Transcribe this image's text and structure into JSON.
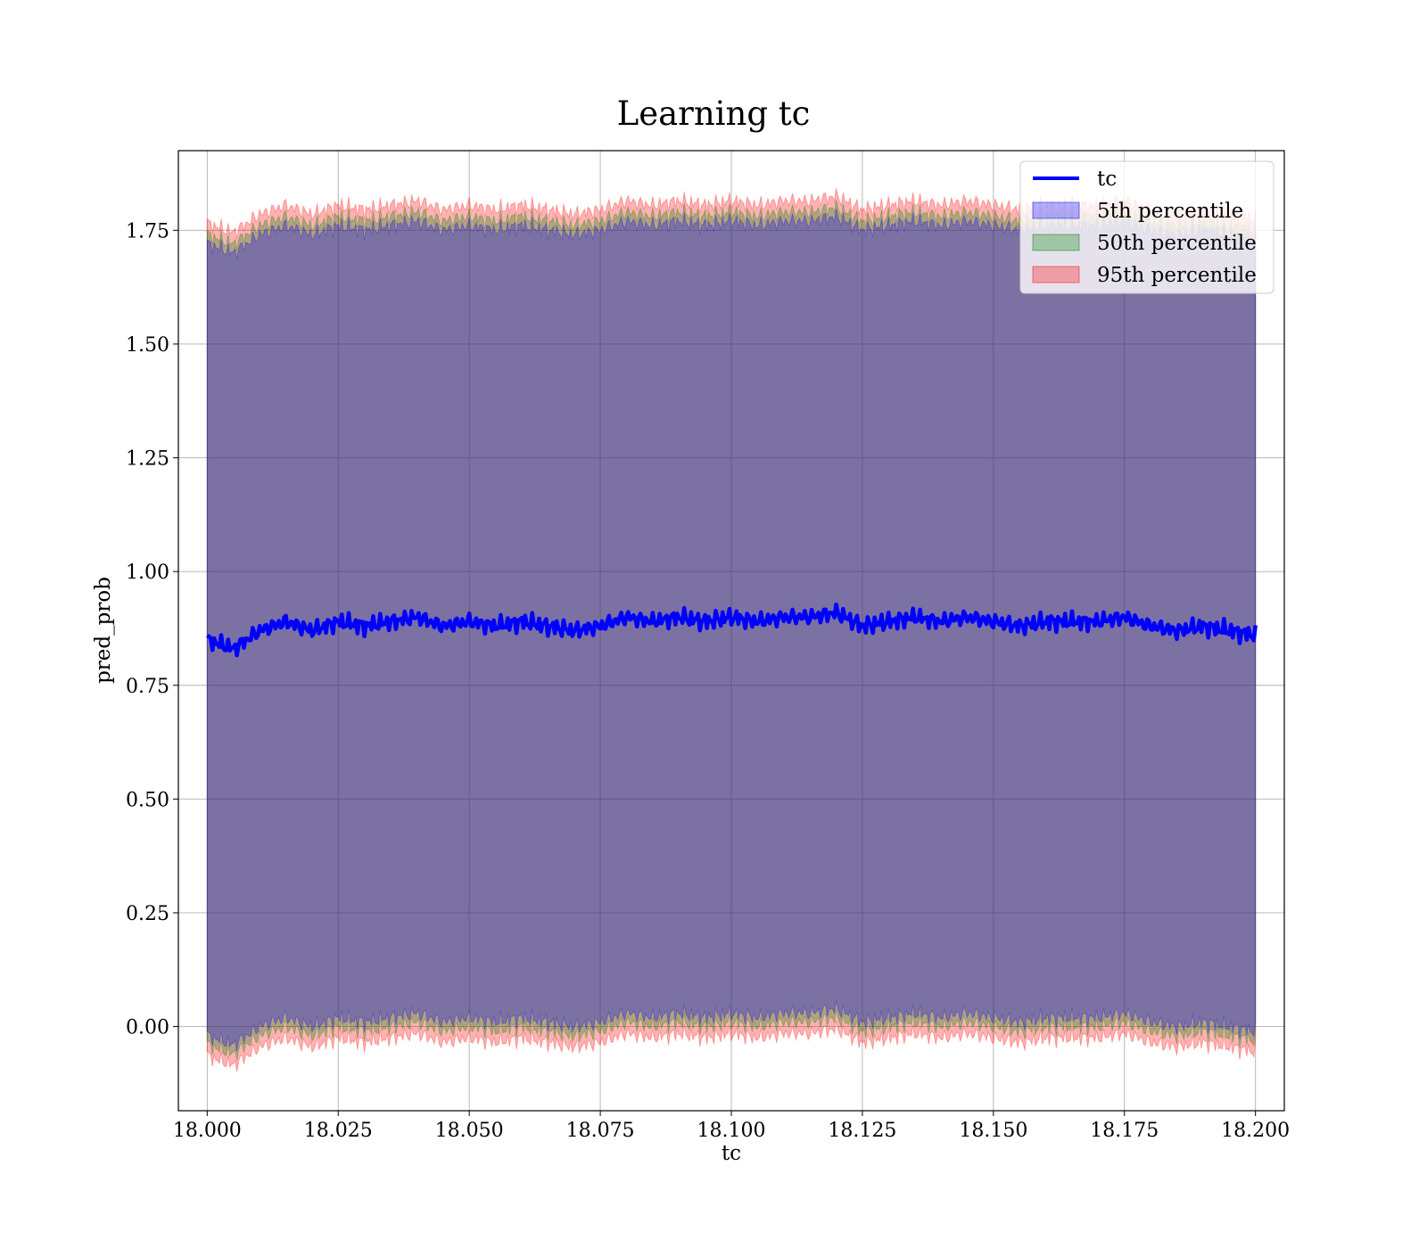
{
  "chart_data": {
    "type": "line",
    "title": "Learning tc",
    "xlabel": "tc",
    "ylabel": "pred_prob",
    "xlim": [
      17.9945,
      18.2055
    ],
    "ylim": [
      -0.185,
      1.925
    ],
    "x_ticks": [
      18.0,
      18.025,
      18.05,
      18.075,
      18.1,
      18.125,
      18.15,
      18.175,
      18.2
    ],
    "x_tick_labels": [
      "18.000",
      "18.025",
      "18.050",
      "18.075",
      "18.100",
      "18.125",
      "18.150",
      "18.175",
      "18.200"
    ],
    "y_ticks": [
      0.0,
      0.25,
      0.5,
      0.75,
      1.0,
      1.25,
      1.5,
      1.75
    ],
    "y_tick_labels": [
      "0.00",
      "0.25",
      "0.50",
      "0.75",
      "1.00",
      "1.25",
      "1.50",
      "1.75"
    ],
    "grid": true,
    "legend_position": "top-right",
    "series": [
      {
        "name": "tc",
        "kind": "line",
        "color": "#0000ff",
        "x": [
          18.0,
          18.005,
          18.01,
          18.015,
          18.02,
          18.025,
          18.03,
          18.035,
          18.04,
          18.045,
          18.05,
          18.055,
          18.06,
          18.065,
          18.07,
          18.075,
          18.08,
          18.085,
          18.09,
          18.095,
          18.1,
          18.105,
          18.11,
          18.115,
          18.12,
          18.125,
          18.13,
          18.135,
          18.14,
          18.145,
          18.15,
          18.155,
          18.16,
          18.165,
          18.17,
          18.175,
          18.18,
          18.185,
          18.19,
          18.195,
          18.2
        ],
        "y": [
          0.85,
          0.83,
          0.87,
          0.89,
          0.87,
          0.89,
          0.88,
          0.89,
          0.9,
          0.88,
          0.89,
          0.88,
          0.89,
          0.88,
          0.87,
          0.88,
          0.9,
          0.89,
          0.9,
          0.89,
          0.9,
          0.89,
          0.9,
          0.9,
          0.91,
          0.88,
          0.89,
          0.9,
          0.89,
          0.9,
          0.89,
          0.88,
          0.89,
          0.89,
          0.89,
          0.9,
          0.88,
          0.87,
          0.88,
          0.87,
          0.86
        ]
      },
      {
        "name": "5th percentile",
        "kind": "band",
        "color": "#0000ff",
        "opacity": 0.3,
        "spread": 0.87
      },
      {
        "name": "50th percentile",
        "kind": "band",
        "color": "#008000",
        "opacity": 0.3,
        "spread": 0.89
      },
      {
        "name": "95th percentile",
        "kind": "band",
        "color": "#ff0000",
        "opacity": 0.3,
        "spread": 0.915
      }
    ]
  }
}
